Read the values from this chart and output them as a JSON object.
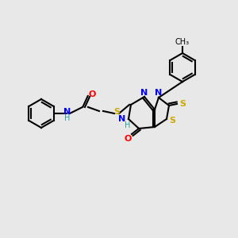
{
  "background_color": "#e8e8e8",
  "atom_colors": {
    "C": "#000000",
    "N": "#0000ff",
    "O": "#ff0000",
    "S": "#ccaa00",
    "H": "#2aa0a0"
  },
  "bond_color": "#000000",
  "figsize": [
    3.0,
    3.0
  ],
  "dpi": 100
}
